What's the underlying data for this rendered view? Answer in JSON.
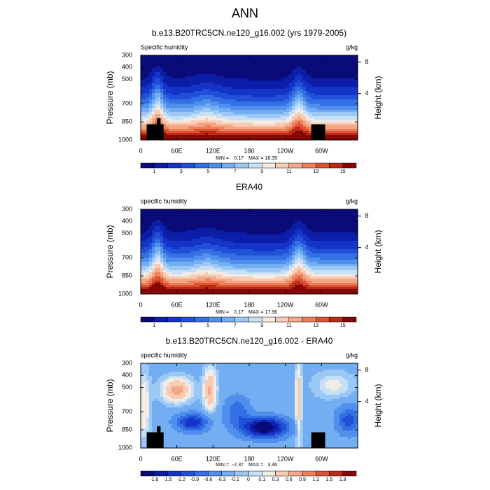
{
  "title": "ANN",
  "chart_data": [
    {
      "type": "contour",
      "title": "b.e13.B20TRC5CN.ne120_g16.002 (yrs 1979-2005)",
      "left_label": "Specific humidity",
      "right_label": "g/kg",
      "ylabel": "Pressure (mb)",
      "y2label": "Height (km)",
      "xlim": [
        0,
        360
      ],
      "xticks": [
        0,
        {
          "value": 60,
          "label": "60E"
        },
        {
          "value": 120,
          "label": "120E"
        },
        180,
        {
          "value": 240,
          "label": "120W"
        },
        {
          "value": 300,
          "label": "60W"
        }
      ],
      "ylim": [
        1000,
        300
      ],
      "yticks": [
        300,
        400,
        500,
        700,
        850,
        1000
      ],
      "y2ticks": [
        8,
        4
      ],
      "min_label": "MIN =",
      "min": 0.17,
      "max_label": "MAX =",
      "max": 18.39,
      "colorbar": {
        "scale": "linear",
        "lim": [
          0,
          16
        ],
        "ticks": [
          1,
          3,
          5,
          7,
          9,
          11,
          13,
          15
        ],
        "colors": [
          "#0a0a78",
          "#0c1ea8",
          "#1434c8",
          "#2050d8",
          "#3470e4",
          "#5090ec",
          "#74aef2",
          "#9cc8f6",
          "#c6e0f8",
          "#f2ece4",
          "#f8ccb4",
          "#f4a888",
          "#ec805c",
          "#dc5432",
          "#bc2a14",
          "#860806"
        ]
      }
    },
    {
      "type": "contour",
      "title": "ERA40",
      "left_label": "specific humidity",
      "right_label": "g/kg",
      "ylabel": "Pressure (mb)",
      "y2label": "Height (km)",
      "xlim": [
        0,
        360
      ],
      "xticks": [
        0,
        {
          "value": 60,
          "label": "60E"
        },
        {
          "value": 120,
          "label": "120E"
        },
        180,
        {
          "value": 240,
          "label": "120W"
        },
        {
          "value": 300,
          "label": "60W"
        }
      ],
      "ylim": [
        1000,
        300
      ],
      "yticks": [
        300,
        400,
        500,
        700,
        850,
        1000
      ],
      "y2ticks": [
        8,
        4
      ],
      "min_label": "MIN =",
      "min": 0.17,
      "max_label": "MAX =",
      "max": 17.96,
      "colorbar": {
        "scale": "linear",
        "lim": [
          0,
          16
        ],
        "ticks": [
          1,
          3,
          5,
          7,
          9,
          11,
          13,
          15
        ],
        "colors": [
          "#0a0a78",
          "#0c1ea8",
          "#1434c8",
          "#2050d8",
          "#3470e4",
          "#5090ec",
          "#74aef2",
          "#9cc8f6",
          "#c6e0f8",
          "#f2ece4",
          "#f8ccb4",
          "#f4a888",
          "#ec805c",
          "#dc5432",
          "#bc2a14",
          "#860806"
        ]
      }
    },
    {
      "type": "contour",
      "title": "b.e13.B20TRC5CN.ne120_g16.002 - ERA40",
      "left_label": "specific humidity",
      "right_label": "g/kg",
      "ylabel": "Pressure (mb)",
      "y2label": "Height (km)",
      "xlim": [
        0,
        360
      ],
      "xticks": [
        0,
        {
          "value": 60,
          "label": "60E"
        },
        {
          "value": 120,
          "label": "120E"
        },
        180,
        {
          "value": 240,
          "label": "120W"
        },
        {
          "value": 300,
          "label": "60W"
        }
      ],
      "ylim": [
        1000,
        300
      ],
      "yticks": [
        300,
        400,
        500,
        700,
        850,
        1000
      ],
      "y2ticks": [
        8,
        4
      ],
      "min_label": "MIN =",
      "min": -2.37,
      "max_label": "MAX =",
      "max": 3.46,
      "colorbar": {
        "scale": "levels",
        "ticks": [
          -1.8,
          -1.5,
          -1.2,
          -0.9,
          -0.6,
          -0.3,
          -0.1,
          0,
          0.1,
          0.3,
          0.6,
          0.9,
          1.2,
          1.5,
          1.8
        ],
        "colors": [
          "#0a0a78",
          "#0c1ea8",
          "#1434c8",
          "#2050d8",
          "#3470e4",
          "#5090ec",
          "#74aef2",
          "#9cc8f6",
          "#c6e0f8",
          "#f2ece4",
          "#f8ccb4",
          "#f4a888",
          "#ec805c",
          "#dc5432",
          "#bc2a14",
          "#860806"
        ]
      }
    }
  ]
}
